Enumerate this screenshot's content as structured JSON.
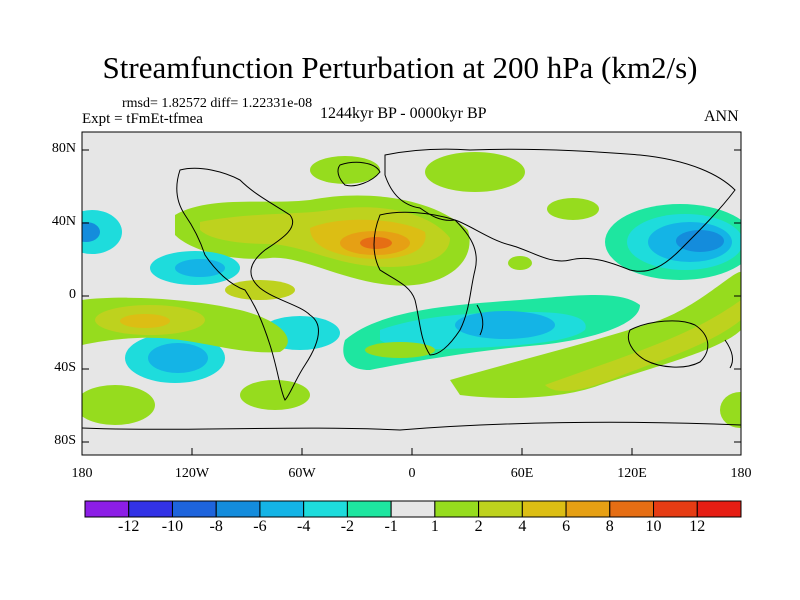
{
  "title": "Streamfunction Perturbation at 200 hPa (km2/s)",
  "stats_line": "rmsd= 1.82572 diff= 1.22331e-08",
  "experiment_label": "Expt = tFmEt-tfmea",
  "period_label": "1244kyr BP - 0000kyr BP",
  "season_label": "ANN",
  "map": {
    "lat_labels": [
      "80N",
      "40N",
      "0",
      "40S",
      "80S"
    ],
    "lon_labels": [
      "180",
      "120W",
      "60W",
      "0",
      "60E",
      "120E",
      "180"
    ]
  },
  "colorbar": {
    "labels": [
      "-12",
      "-10",
      "-8",
      "-6",
      "-4",
      "-2",
      "-1",
      "1",
      "2",
      "4",
      "6",
      "8",
      "10",
      "12"
    ],
    "colors": [
      "#8c1ee6",
      "#3232e6",
      "#1e64dc",
      "#148cdc",
      "#14b4e6",
      "#1edcdc",
      "#1ee6a0",
      "#e6e6e6",
      "#96dc1e",
      "#bed21e",
      "#dcbe14",
      "#e6a014",
      "#e66e14",
      "#e63c14",
      "#e61e14"
    ]
  },
  "colors": {
    "neutral": "#e6e6e6",
    "coastline": "#000000"
  }
}
